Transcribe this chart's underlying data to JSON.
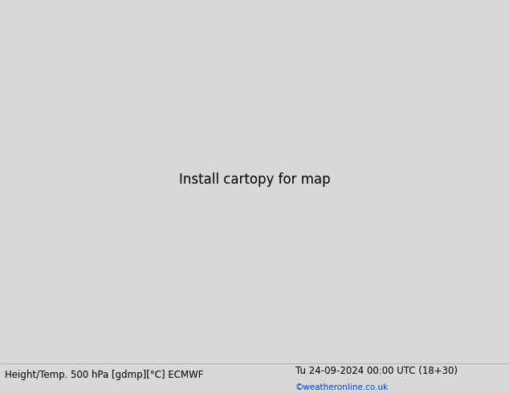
{
  "title_left": "Height/Temp. 500 hPa [gdmp][°C] ECMWF",
  "title_right": "Tu 24-09-2024 00:00 UTC (18+30)",
  "credit": "©weatheronline.co.uk",
  "fig_width": 6.34,
  "fig_height": 4.9,
  "dpi": 100,
  "ocean_color": "#c8c8c8",
  "land_color": "#b8d890",
  "coastline_color": "#555555",
  "border_color": "#888888",
  "bottom_bg": "#d8d8d8",
  "title_fontsize": 8.5,
  "credit_fontsize": 7.5,
  "lon_min": 70,
  "lon_max": 200,
  "lat_min": -15,
  "lat_max": 60,
  "contour_lw": 1.3,
  "label_fontsize": 6.5
}
